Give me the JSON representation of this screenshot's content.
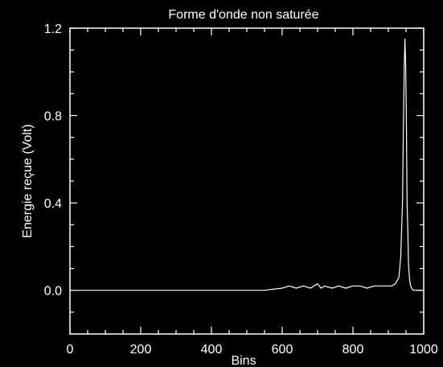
{
  "chart_data": {
    "type": "line",
    "title": "Forme d'onde non saturée",
    "xlabel": "Bins",
    "ylabel": "Energie reçue (Volt)",
    "xlim": [
      0,
      1000
    ],
    "ylim": [
      -0.2,
      1.2
    ],
    "x_ticks": [
      0,
      200,
      400,
      600,
      800,
      1000
    ],
    "x_tick_labels": [
      "0",
      "200",
      "400",
      "600",
      "800",
      "1000"
    ],
    "y_ticks": [
      0.0,
      0.4,
      0.8,
      1.2
    ],
    "y_tick_labels": [
      "0.0",
      "0.4",
      "0.8",
      "1.2"
    ],
    "grid": false,
    "colors": {
      "background": "#000000",
      "foreground": "#ffffff",
      "series": "#ffffff"
    },
    "series": [
      {
        "x": [
          20,
          50,
          100,
          150,
          200,
          250,
          300,
          350,
          400,
          450,
          500,
          550,
          600,
          620,
          640,
          660,
          680,
          700,
          710,
          720,
          740,
          760,
          780,
          800,
          820,
          840,
          860,
          880,
          900,
          910,
          920,
          930,
          935,
          940,
          943,
          945,
          947,
          949,
          951,
          953,
          955,
          957,
          960,
          963,
          966,
          970,
          980,
          1000
        ],
        "y": [
          0.0,
          0.0,
          0.0,
          0.0,
          0.0,
          0.0,
          0.0,
          0.0,
          0.0,
          0.0,
          0.0,
          0.0,
          0.01,
          0.02,
          0.01,
          0.02,
          0.01,
          0.03,
          0.01,
          0.02,
          0.01,
          0.02,
          0.01,
          0.02,
          0.02,
          0.01,
          0.02,
          0.02,
          0.02,
          0.02,
          0.03,
          0.06,
          0.15,
          0.4,
          0.8,
          1.02,
          1.15,
          1.03,
          0.78,
          0.4,
          0.28,
          0.12,
          0.05,
          0.02,
          0.01,
          0.0,
          0.0,
          0.0
        ]
      }
    ]
  }
}
